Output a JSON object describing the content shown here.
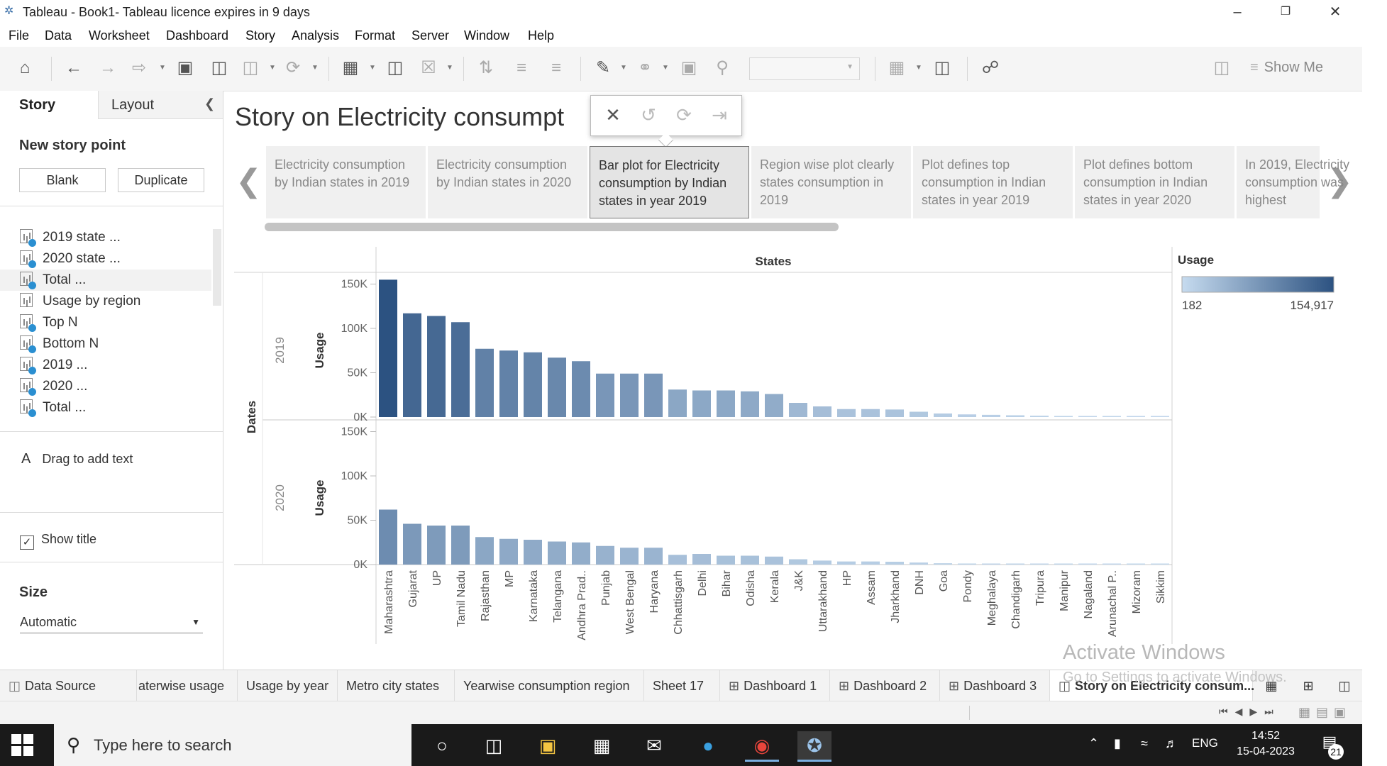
{
  "window": {
    "title": "Tableau - Book1- Tableau licence expires in 9 days"
  },
  "menu": [
    "File",
    "Data",
    "Worksheet",
    "Dashboard",
    "Story",
    "Analysis",
    "Format",
    "Server",
    "Window",
    "Help"
  ],
  "toolbar": {
    "show_me": "Show Me"
  },
  "left_pane": {
    "tab_story": "Story",
    "tab_layout": "Layout",
    "new_story_point": "New story point",
    "blank": "Blank",
    "duplicate": "Duplicate",
    "sheets": [
      "2019 state ...",
      "2020 state ...",
      "Total ...",
      "Usage by region",
      "Top N",
      "Bottom N",
      "2019 ...",
      "2020 ...",
      "Total ..."
    ],
    "drag_text": "Drag to add text",
    "drag_icon": "A",
    "show_title": "Show title",
    "size_label": "Size",
    "size_value": "Automatic"
  },
  "story": {
    "title": "Story on Electricity consumpt",
    "points": [
      "Electricity consumption by Indian states in 2019",
      "Electricity consumption by Indian states in 2020",
      "Bar plot for Electricity consumption by Indian states in year 2019",
      "Region wise plot clearly states consumption in 2019",
      "Plot defines top consumption in Indian states in year 2019",
      "Plot defines bottom consumption in Indian states in year 2020",
      "In 2019, Electricity consumption was highest"
    ],
    "active_point": 2
  },
  "chart_data": {
    "type": "bar",
    "column_header": "States",
    "row_header": "Dates",
    "ylabel": "Usage",
    "categories": [
      "Maharashtra",
      "Gujarat",
      "UP",
      "Tamil Nadu",
      "Rajasthan",
      "MP",
      "Karnataka",
      "Telangana",
      "Andhra Prad..",
      "Punjab",
      "West Bengal",
      "Haryana",
      "Chhattisgarh",
      "Delhi",
      "Bihar",
      "Odisha",
      "Kerala",
      "J&K",
      "Uttarakhand",
      "HP",
      "Assam",
      "Jharkhand",
      "DNH",
      "Goa",
      "Pondy",
      "Meghalaya",
      "Chandigarh",
      "Tripura",
      "Manipur",
      "Nagaland",
      "Arunachal P..",
      "Mizoram",
      "Sikkim"
    ],
    "yticks": [
      "0K",
      "50K",
      "100K",
      "150K"
    ],
    "ylim": [
      0,
      160000
    ],
    "series": [
      {
        "name": "2019",
        "values": [
          154917,
          117000,
          114000,
          107000,
          77000,
          75000,
          73000,
          67000,
          63000,
          49000,
          49000,
          49000,
          31000,
          30000,
          30000,
          29000,
          26000,
          16000,
          12000,
          9000,
          9000,
          8500,
          6000,
          4000,
          3000,
          2500,
          2000,
          1500,
          1200,
          1000,
          900,
          700,
          600
        ]
      },
      {
        "name": "2020",
        "values": [
          62000,
          46000,
          44000,
          44000,
          31000,
          29000,
          28000,
          26000,
          25000,
          21000,
          19000,
          19000,
          11000,
          12000,
          10000,
          10000,
          9000,
          6000,
          4500,
          3500,
          3500,
          3200,
          2300,
          1500,
          1200,
          1000,
          800,
          600,
          500,
          400,
          400,
          300,
          182
        ]
      }
    ],
    "legend": {
      "title": "Usage",
      "min": "182",
      "max": "154,917",
      "color_low": "#c6dbef",
      "color_high": "#2c5281",
      "position": "right"
    }
  },
  "sheet_tabs": [
    "Data Source",
    "aterwise usage",
    "Usage by year",
    "Metro city states",
    "Yearwise consumption region",
    "Sheet 17",
    "Dashboard 1",
    "Dashboard 2",
    "Dashboard 3",
    "Story on Electricity consum..."
  ],
  "watermark": {
    "line1": "Activate Windows",
    "line2": "Go to Settings to activate Windows."
  },
  "taskbar": {
    "search_placeholder": "Type here to search",
    "lang": "ENG",
    "time": "14:52",
    "date": "15-04-2023",
    "notifications": "21"
  }
}
